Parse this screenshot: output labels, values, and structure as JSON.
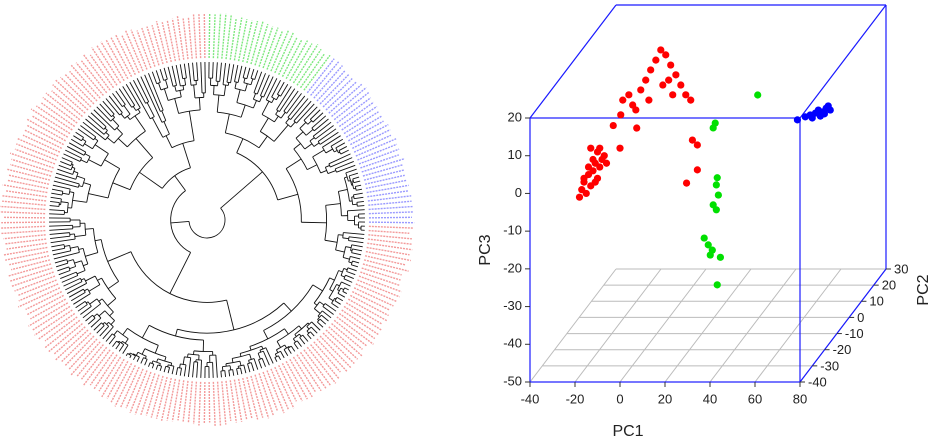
{
  "chart_data": {
    "type": "scatter3d",
    "xlabel": "PC1",
    "ylabel": "PC2",
    "zlabel": "PC3",
    "xlim": [
      -40,
      80
    ],
    "xticks": [
      -40,
      -20,
      0,
      20,
      40,
      60,
      80
    ],
    "ylim": [
      -40,
      30
    ],
    "yticks": [
      -40,
      -30,
      -20,
      -10,
      0,
      10,
      20,
      30
    ],
    "zlim": [
      -50,
      20
    ],
    "zticks": [
      -50,
      -40,
      -30,
      -20,
      -10,
      0,
      10,
      20
    ],
    "grid": true,
    "box_color": "#1a1aff",
    "series": [
      {
        "color": "#ff0000",
        "x": [
          -18,
          -17,
          -16,
          -15,
          -14,
          -13,
          -12,
          -11,
          -10,
          -9,
          -8,
          -7,
          -10,
          -12,
          -14,
          -16,
          -13,
          -9,
          -6,
          -11,
          0,
          -3,
          -28.8,
          -26.1,
          -24.4,
          -20.8,
          -18.6,
          -16.4,
          -14.1,
          -11.9,
          -9.7,
          -7.5,
          -5.2,
          -3.0,
          -0.8,
          1.4,
          -11.0,
          -6.6,
          -17.2,
          -8.4,
          -23.0,
          -29.7,
          -22.6,
          15.8,
          18.0,
          13.2,
          18.0
        ],
        "y": [
          -40,
          -40,
          -40,
          -40,
          -40,
          -40,
          -40,
          -40,
          -40,
          -40,
          -40,
          -40,
          -40,
          -40,
          -40,
          -40,
          -40,
          -40,
          -40,
          -40,
          -40,
          -40,
          15,
          15,
          15,
          15,
          15,
          15,
          15,
          15,
          15,
          15,
          15,
          15,
          15,
          15,
          15,
          15,
          15,
          15,
          15,
          15,
          15,
          -10,
          -10,
          -10,
          -10
        ],
        "z": [
          -1,
          1,
          3,
          0,
          5,
          2,
          6,
          8,
          4,
          7,
          9,
          10,
          11,
          9,
          7,
          4,
          12,
          12,
          8,
          3,
          12,
          18,
          1.2,
          2.6,
          -0.1,
          3.9,
          6.5,
          9.2,
          11.8,
          14.5,
          13.2,
          10.5,
          7.9,
          5.2,
          2.6,
          1.2,
          5.2,
          2.6,
          1.2,
          6.5,
          -1.4,
          -2.7,
          -6.2,
          1.3,
          0,
          -10.1,
          -6.6
        ]
      },
      {
        "color": "#00e000",
        "x": [
          31.4,
          30.5,
          32.3,
          31.9,
          32.8,
          30.5,
          31.9,
          26.5,
          28.3,
          30.1,
          29.2,
          32.3,
          33.7,
          33.9
        ],
        "y": [
          -20,
          -20,
          -20,
          -20,
          -20,
          -20,
          -20,
          -20,
          -20,
          -20,
          -20,
          -20,
          -20,
          10
        ],
        "z": [
          10.1,
          8.8,
          -4.4,
          -6.3,
          -9.0,
          -11.6,
          -12.9,
          -20.4,
          -22.2,
          -23.6,
          -24.9,
          -32.8,
          -25.5,
          4.7
        ]
      },
      {
        "color": "#0000ff",
        "x": [
          65.2,
          68.7,
          70.9,
          73.2,
          74.5,
          76.3,
          78.0,
          78.9,
          71.8,
          75.4,
          77.2,
          79.8
        ],
        "y": [
          -15,
          -15,
          -15,
          -15,
          -15,
          -15,
          -15,
          -15,
          -15,
          -15,
          -15,
          -15
        ],
        "z": [
          8.8,
          9.6,
          10.1,
          10.6,
          11.4,
          10.9,
          11.9,
          12.5,
          9.3,
          9.8,
          10.4,
          11.4
        ]
      }
    ]
  }
}
